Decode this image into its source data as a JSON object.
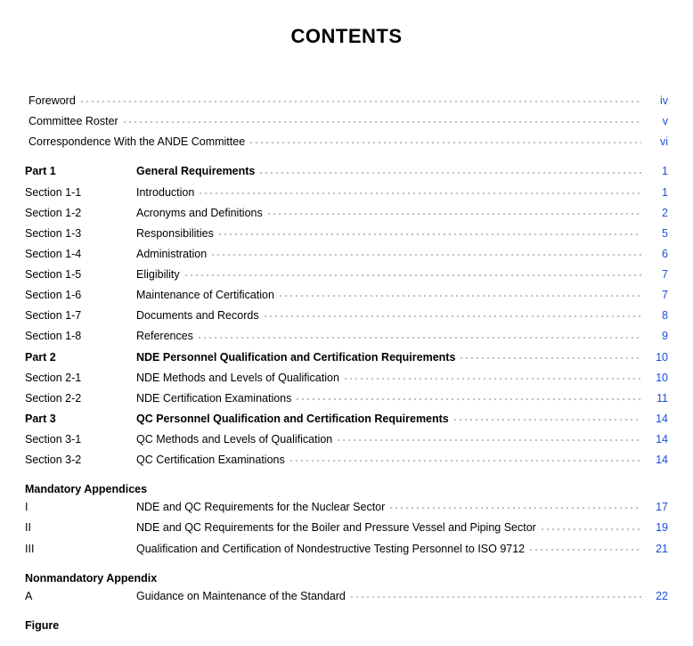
{
  "title": "CONTENTS",
  "page_link_color": "#1a4fd6",
  "front": [
    {
      "title": "Foreword",
      "page": "iv"
    },
    {
      "title": "Committee Roster",
      "page": "v"
    },
    {
      "title": "Correspondence With the ANDE Committee",
      "page": "vi"
    }
  ],
  "main": [
    {
      "label": "Part 1",
      "title": "General Requirements",
      "page": "1",
      "bold": true
    },
    {
      "label": "Section 1-1",
      "title": "Introduction",
      "page": "1"
    },
    {
      "label": "Section 1-2",
      "title": "Acronyms and Definitions",
      "page": "2"
    },
    {
      "label": "Section 1-3",
      "title": "Responsibilities",
      "page": "5"
    },
    {
      "label": "Section 1-4",
      "title": "Administration",
      "page": "6"
    },
    {
      "label": "Section 1-5",
      "title": "Eligibility",
      "page": "7"
    },
    {
      "label": "Section 1-6",
      "title": "Maintenance of Certification",
      "page": "7"
    },
    {
      "label": "Section 1-7",
      "title": "Documents and Records",
      "page": "8"
    },
    {
      "label": "Section 1-8",
      "title": "References",
      "page": "9"
    },
    {
      "label": "Part 2",
      "title": "NDE Personnel Qualification and Certification Requirements",
      "page": "10",
      "bold": true
    },
    {
      "label": "Section 2-1",
      "title": "NDE Methods and Levels of Qualification",
      "page": "10"
    },
    {
      "label": "Section 2-2",
      "title": "NDE Certification Examinations",
      "page": "11"
    },
    {
      "label": "Part 3",
      "title": "QC Personnel Qualification and Certification Requirements",
      "page": "14",
      "bold": true
    },
    {
      "label": "Section 3-1",
      "title": "QC Methods and Levels of Qualification",
      "page": "14"
    },
    {
      "label": "Section 3-2",
      "title": "QC Certification Examinations",
      "page": "14"
    }
  ],
  "mandatory_heading": "Mandatory Appendices",
  "mandatory": [
    {
      "label": "I",
      "title": "NDE and QC Requirements for the Nuclear Sector",
      "page": "17"
    },
    {
      "label": "II",
      "title": "NDE and QC Requirements for the Boiler and Pressure Vessel and Piping Sector",
      "page": "19"
    },
    {
      "label": "III",
      "title": "Qualification and Certification of Nondestructive Testing Personnel to ISO 9712",
      "page": "21"
    }
  ],
  "nonmandatory_heading": "Nonmandatory Appendix",
  "nonmandatory": [
    {
      "label": "A",
      "title": "Guidance on Maintenance of the Standard",
      "page": "22"
    }
  ],
  "figure_heading": "Figure"
}
